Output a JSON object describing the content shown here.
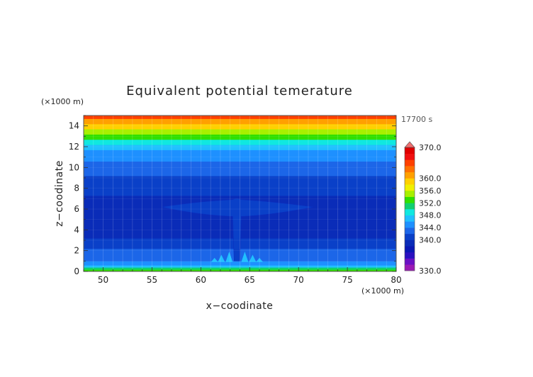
{
  "chart_data": {
    "type": "heatmap",
    "title": "Equivalent potential temerature",
    "xlabel": "x−coodinate",
    "ylabel": "z−coodinate",
    "x_unit": "(×1000 m)",
    "y_unit": "(×1000 m)",
    "time_label": "17700 s",
    "xlim": [
      48,
      80
    ],
    "ylim": [
      0,
      15
    ],
    "x_ticks": [
      50,
      55,
      60,
      65,
      70,
      75,
      80
    ],
    "y_ticks": [
      0,
      2,
      4,
      6,
      8,
      10,
      12,
      14
    ],
    "colorbar_levels": [
      330,
      332,
      334,
      336,
      338,
      340,
      342,
      344,
      346,
      348,
      350,
      352,
      354,
      356,
      358,
      360,
      362,
      364,
      366,
      368,
      370
    ],
    "colorbar_colors": [
      "#9a1ab4",
      "#6a10c4",
      "#2a10c0",
      "#0a18b4",
      "#0a2cb8",
      "#0a40c8",
      "#1c66e8",
      "#1e90ff",
      "#20c0ff",
      "#10e8e0",
      "#10d070",
      "#30e000",
      "#a8f000",
      "#f0f000",
      "#ffd000",
      "#ffa000",
      "#ff7000",
      "#ff4000",
      "#f01010",
      "#e00000"
    ],
    "colorbar_tick_labels": [
      "330.0",
      "340.0",
      "344.0",
      "348.0",
      "352.0",
      "356.0",
      "360.0",
      "370.0"
    ],
    "colorbar_label_values": [
      330,
      340,
      344,
      348,
      352,
      356,
      360,
      370
    ],
    "field_profile": {
      "z_km": [
        0,
        0.2,
        0.4,
        0.6,
        1.0,
        1.6,
        2.2,
        2.7,
        3.2,
        6.7,
        7.3,
        8.0,
        9.2,
        10.0,
        10.6,
        11.2,
        11.7,
        12.2,
        12.7,
        13.2,
        13.7,
        14.2,
        14.7,
        15.0
      ],
      "theta_e_K": [
        352,
        350,
        347,
        345,
        343,
        342,
        341,
        340,
        339,
        339,
        340,
        341,
        342,
        343,
        344,
        345,
        347,
        349,
        352,
        355,
        358,
        361,
        364,
        367
      ]
    },
    "plume": {
      "center_x": 63.7,
      "stem_z": [
        1.0,
        5.8
      ],
      "anvil_x": [
        56.0,
        71.5
      ],
      "anvil_z": [
        5.7,
        6.7
      ],
      "theta_e_K": 341
    }
  }
}
